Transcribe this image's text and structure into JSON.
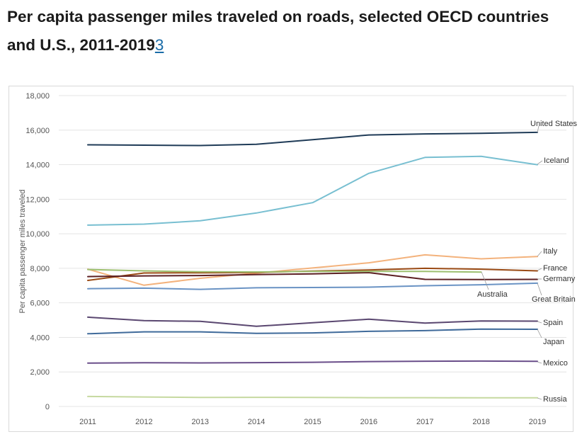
{
  "page": {
    "title_text": "Per capita passenger miles traveled on roads, selected OECD countries and U.S., 2011-2019",
    "title_ref": "3"
  },
  "chart_data": {
    "type": "line",
    "title": "Per capita passenger miles traveled on roads, selected OECD countries and U.S., 2011-2019",
    "xlabel": "",
    "ylabel": "Per capita passenger miles traveled",
    "x": [
      2011,
      2012,
      2013,
      2014,
      2015,
      2016,
      2017,
      2018,
      2019
    ],
    "ylim": [
      0,
      18000
    ],
    "yticks": [
      0,
      2000,
      4000,
      6000,
      8000,
      10000,
      12000,
      14000,
      16000,
      18000
    ],
    "ytick_labels": [
      "0",
      "2,000",
      "4,000",
      "6,000",
      "8,000",
      "10,000",
      "12,000",
      "14,000",
      "16,000",
      "18,000"
    ],
    "grid": true,
    "series": [
      {
        "name": "United States",
        "color": "#1f3b57",
        "values": [
          15150,
          15130,
          15110,
          15180,
          15450,
          15720,
          15780,
          15820,
          15870
        ]
      },
      {
        "name": "Iceland",
        "color": "#78bfd1",
        "values": [
          10500,
          10560,
          10750,
          11200,
          11800,
          13500,
          14420,
          14480,
          14000
        ]
      },
      {
        "name": "Italy",
        "color": "#f3b27c",
        "values": [
          7950,
          7020,
          7420,
          7720,
          8020,
          8320,
          8780,
          8550,
          8680
        ]
      },
      {
        "name": "France",
        "color": "#9a4a14",
        "values": [
          7300,
          7730,
          7740,
          7760,
          7840,
          7900,
          8000,
          7950,
          7850
        ]
      },
      {
        "name": "Germany",
        "color": "#5c1f22",
        "values": [
          7520,
          7560,
          7580,
          7640,
          7680,
          7750,
          7360,
          7350,
          7360
        ]
      },
      {
        "name": "Australia",
        "color": "#9dbf6f",
        "values": [
          7930,
          7850,
          7800,
          7790,
          7820,
          7820,
          7820,
          7780,
          null
        ]
      },
      {
        "name": "Great Britain",
        "color": "#6a93c4",
        "values": [
          6820,
          6850,
          6780,
          6870,
          6890,
          6910,
          6990,
          7050,
          7140
        ]
      },
      {
        "name": "Spain",
        "color": "#5a4770",
        "values": [
          5170,
          4970,
          4930,
          4640,
          4850,
          5050,
          4830,
          4950,
          4940
        ]
      },
      {
        "name": "Japan",
        "color": "#3f6a9a",
        "values": [
          4210,
          4320,
          4320,
          4230,
          4260,
          4350,
          4390,
          4480,
          4470
        ]
      },
      {
        "name": "Mexico",
        "color": "#6a4e8a",
        "values": [
          2510,
          2530,
          2520,
          2540,
          2560,
          2600,
          2620,
          2630,
          2610
        ]
      },
      {
        "name": "Russia",
        "color": "#c6d9a0",
        "values": [
          580,
          550,
          520,
          530,
          520,
          510,
          510,
          500,
          500
        ]
      }
    ]
  }
}
